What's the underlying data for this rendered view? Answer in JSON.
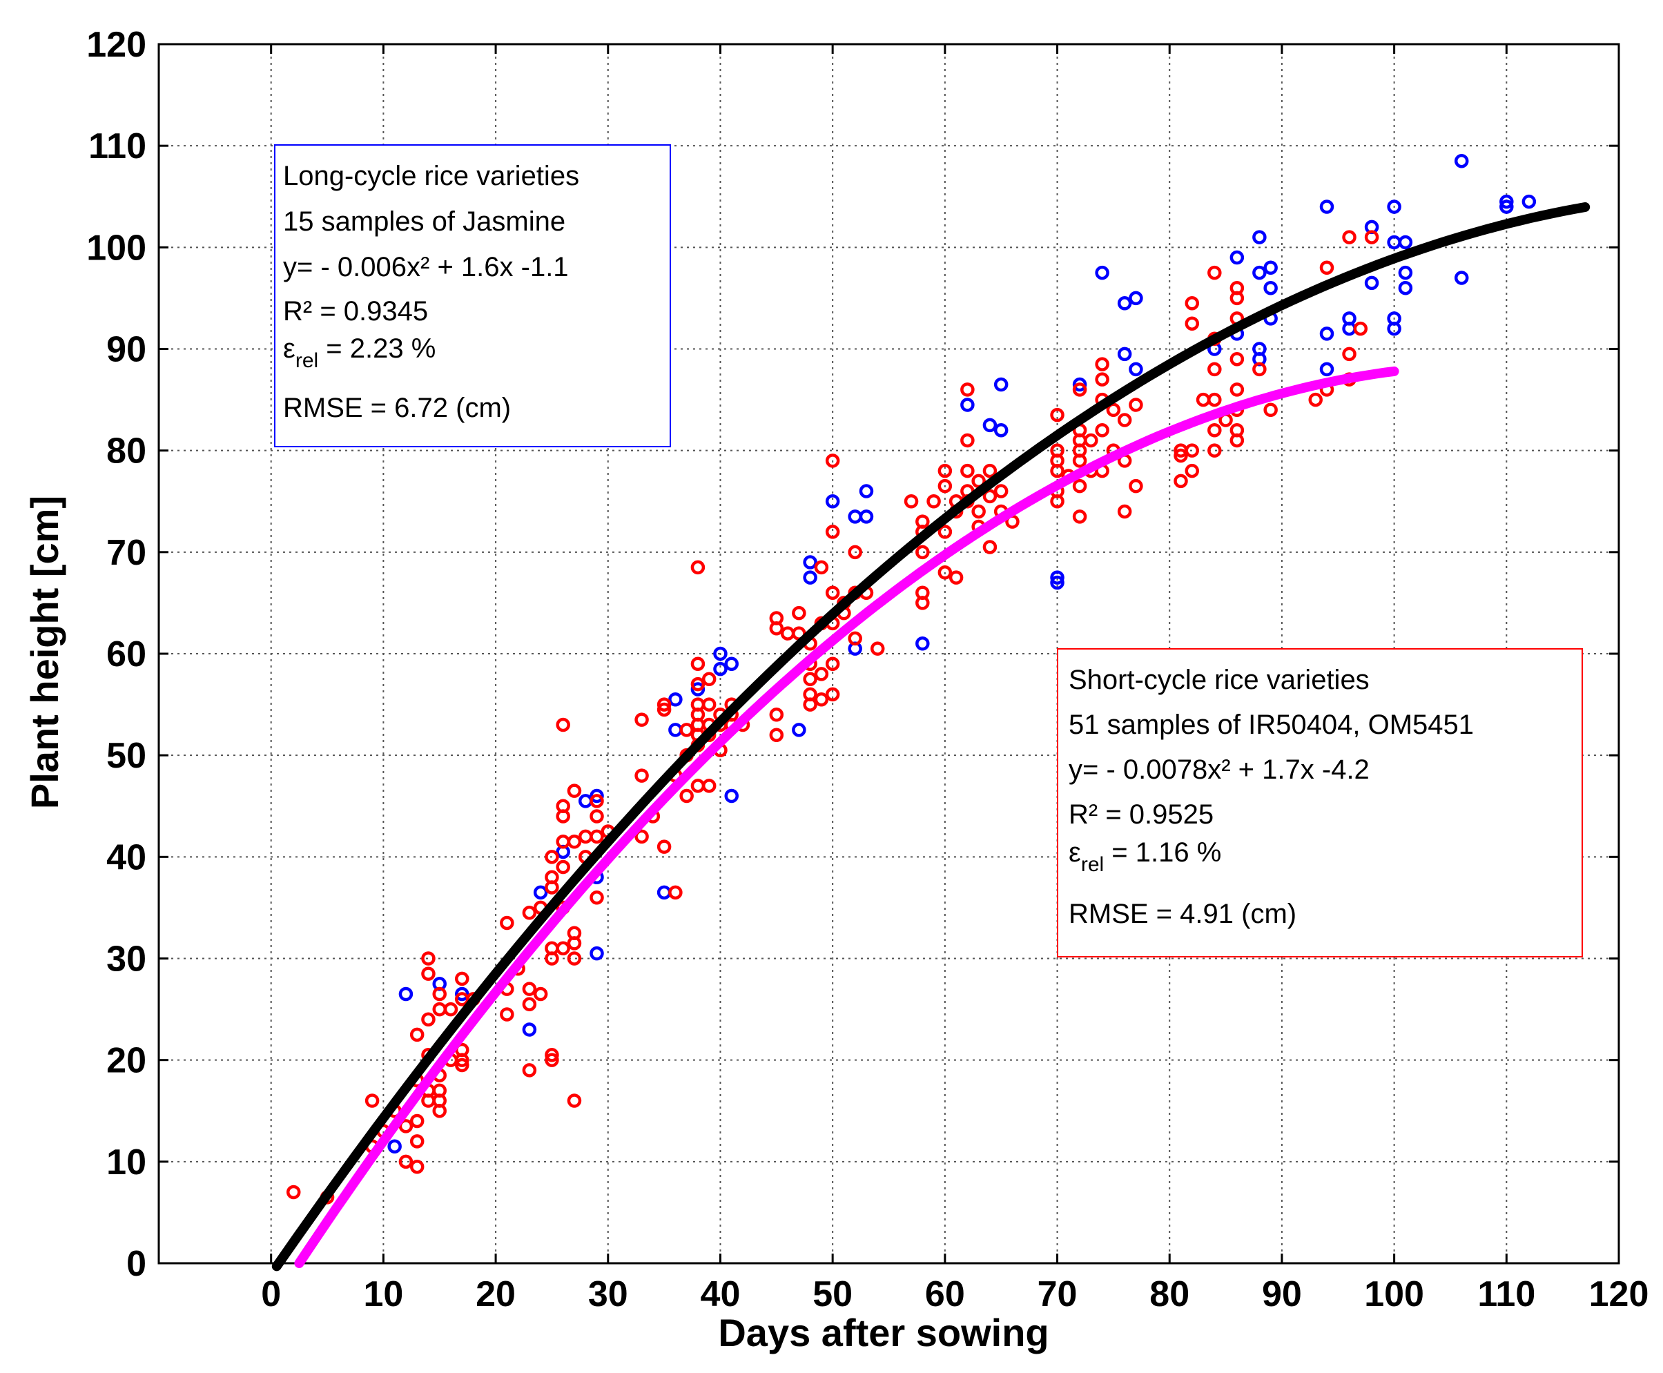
{
  "chart_data": {
    "type": "scatter",
    "xlabel": "Days after sowing",
    "ylabel": "Plant height [cm]",
    "xlim": [
      -10,
      120
    ],
    "ylim": [
      0,
      120
    ],
    "x_ticks": [
      0,
      10,
      20,
      30,
      40,
      50,
      60,
      70,
      80,
      90,
      100,
      110,
      120
    ],
    "y_ticks": [
      0,
      10,
      20,
      30,
      40,
      50,
      60,
      70,
      80,
      90,
      100,
      110,
      120
    ],
    "grid": true,
    "colors": {
      "long_cycle": "#0000ff",
      "short_cycle": "#ff0000",
      "long_fit": "#000000",
      "short_fit": "#ff00ff"
    },
    "series": [
      {
        "name": "Long-cycle rice varieties (Jasmine)",
        "marker": "circle-open",
        "color": "#0000ff",
        "points": [
          [
            11,
            11.5
          ],
          [
            12,
            26.5
          ],
          [
            15,
            27.5
          ],
          [
            17,
            26.5
          ],
          [
            23,
            23
          ],
          [
            24,
            36.5
          ],
          [
            26,
            40.5
          ],
          [
            28,
            45.5
          ],
          [
            29,
            46
          ],
          [
            29,
            30.5
          ],
          [
            29,
            38
          ],
          [
            35,
            36.5
          ],
          [
            36,
            55.5
          ],
          [
            36,
            52.5
          ],
          [
            38,
            56.5
          ],
          [
            40,
            60
          ],
          [
            40,
            58.5
          ],
          [
            41,
            59
          ],
          [
            41,
            46
          ],
          [
            47,
            52.5
          ],
          [
            48,
            69
          ],
          [
            48,
            67.5
          ],
          [
            50,
            75
          ],
          [
            52,
            73.5
          ],
          [
            52,
            60.5
          ],
          [
            53,
            76
          ],
          [
            53,
            73.5
          ],
          [
            58,
            61
          ],
          [
            62,
            84.5
          ],
          [
            64,
            82.5
          ],
          [
            65,
            86.5
          ],
          [
            65,
            82
          ],
          [
            70,
            67.5
          ],
          [
            70,
            67
          ],
          [
            72,
            86.5
          ],
          [
            74,
            97.5
          ],
          [
            76,
            94.5
          ],
          [
            77,
            95
          ],
          [
            76,
            89.5
          ],
          [
            77,
            88
          ],
          [
            84,
            90
          ],
          [
            86,
            99
          ],
          [
            86,
            91.5
          ],
          [
            88,
            101
          ],
          [
            88,
            97.5
          ],
          [
            88,
            90
          ],
          [
            88,
            89
          ],
          [
            89,
            98
          ],
          [
            89,
            96
          ],
          [
            89,
            93
          ],
          [
            94,
            104
          ],
          [
            94,
            91.5
          ],
          [
            94,
            88
          ],
          [
            96,
            93
          ],
          [
            96,
            92
          ],
          [
            98,
            102
          ],
          [
            98,
            96.5
          ],
          [
            100,
            104
          ],
          [
            100,
            100.5
          ],
          [
            100,
            93
          ],
          [
            100,
            92
          ],
          [
            101,
            100.5
          ],
          [
            101,
            97.5
          ],
          [
            101,
            96
          ],
          [
            106,
            108.5
          ],
          [
            106,
            97
          ],
          [
            110,
            104.5
          ],
          [
            110,
            104
          ],
          [
            112,
            104.5
          ]
        ]
      },
      {
        "name": "Short-cycle rice varieties (IR50404, OM5451)",
        "marker": "circle-open",
        "color": "#ff0000",
        "points": [
          [
            2,
            7
          ],
          [
            5,
            6.5
          ],
          [
            9,
            16
          ],
          [
            9,
            11.5
          ],
          [
            10,
            13
          ],
          [
            11,
            15
          ],
          [
            12,
            10
          ],
          [
            12,
            13.5
          ],
          [
            13,
            9.5
          ],
          [
            13,
            12
          ],
          [
            13,
            14
          ],
          [
            13,
            18
          ],
          [
            13,
            22.5
          ],
          [
            14,
            16
          ],
          [
            14,
            17
          ],
          [
            14,
            20.5
          ],
          [
            14,
            24
          ],
          [
            14,
            28.5
          ],
          [
            14,
            30
          ],
          [
            15,
            15
          ],
          [
            15,
            16
          ],
          [
            15,
            17
          ],
          [
            15,
            18.5
          ],
          [
            15,
            25
          ],
          [
            15,
            26.5
          ],
          [
            16,
            20
          ],
          [
            16,
            25
          ],
          [
            17,
            19.5
          ],
          [
            17,
            20
          ],
          [
            17,
            21
          ],
          [
            17,
            26
          ],
          [
            17,
            28
          ],
          [
            18,
            26
          ],
          [
            21,
            33.5
          ],
          [
            21,
            27
          ],
          [
            21,
            24.5
          ],
          [
            22,
            29
          ],
          [
            23,
            34.5
          ],
          [
            23,
            27
          ],
          [
            23,
            25.5
          ],
          [
            23,
            19
          ],
          [
            24,
            26.5
          ],
          [
            24,
            35
          ],
          [
            25,
            20
          ],
          [
            25,
            20.5
          ],
          [
            25,
            30
          ],
          [
            25,
            31
          ],
          [
            25,
            37
          ],
          [
            25,
            40
          ],
          [
            25,
            38
          ],
          [
            26,
            53
          ],
          [
            26,
            45
          ],
          [
            26,
            44
          ],
          [
            26,
            41.5
          ],
          [
            26,
            39
          ],
          [
            26,
            35
          ],
          [
            26,
            31
          ],
          [
            27,
            46.5
          ],
          [
            27,
            41.5
          ],
          [
            27,
            32.5
          ],
          [
            27,
            31.5
          ],
          [
            27,
            30
          ],
          [
            27,
            16
          ],
          [
            28,
            42
          ],
          [
            28,
            40
          ],
          [
            29,
            45.5
          ],
          [
            29,
            44
          ],
          [
            29,
            42
          ],
          [
            29,
            36
          ],
          [
            30,
            42.5
          ],
          [
            33,
            53.5
          ],
          [
            33,
            48
          ],
          [
            33,
            42
          ],
          [
            34,
            44
          ],
          [
            35,
            55
          ],
          [
            35,
            54.5
          ],
          [
            35,
            41
          ],
          [
            36,
            36.5
          ],
          [
            36,
            48
          ],
          [
            37,
            46
          ],
          [
            37,
            50
          ],
          [
            37,
            52.5
          ],
          [
            38,
            68.5
          ],
          [
            38,
            59
          ],
          [
            38,
            57
          ],
          [
            38,
            55
          ],
          [
            38,
            54
          ],
          [
            38,
            53
          ],
          [
            38,
            52
          ],
          [
            38,
            51
          ],
          [
            38,
            47
          ],
          [
            39,
            57.5
          ],
          [
            39,
            55
          ],
          [
            39,
            53
          ],
          [
            39,
            52
          ],
          [
            39,
            47
          ],
          [
            40,
            54
          ],
          [
            40,
            53
          ],
          [
            40,
            50.5
          ],
          [
            41,
            54
          ],
          [
            41,
            53
          ],
          [
            41,
            55
          ],
          [
            42,
            53
          ],
          [
            45,
            63.5
          ],
          [
            45,
            62.5
          ],
          [
            45,
            52
          ],
          [
            45,
            54
          ],
          [
            46,
            62
          ],
          [
            47,
            64
          ],
          [
            47,
            62
          ],
          [
            48,
            61
          ],
          [
            48,
            59
          ],
          [
            48,
            57.5
          ],
          [
            48,
            56
          ],
          [
            48,
            55
          ],
          [
            49,
            68.5
          ],
          [
            49,
            63
          ],
          [
            49,
            58
          ],
          [
            49,
            55.5
          ],
          [
            50,
            79
          ],
          [
            50,
            72
          ],
          [
            50,
            66
          ],
          [
            50,
            63
          ],
          [
            50,
            59
          ],
          [
            50,
            56
          ],
          [
            51,
            65
          ],
          [
            51,
            64
          ],
          [
            52,
            66
          ],
          [
            52,
            70
          ],
          [
            52,
            61.5
          ],
          [
            53,
            66
          ],
          [
            54,
            60.5
          ],
          [
            57,
            75
          ],
          [
            58,
            73
          ],
          [
            58,
            72
          ],
          [
            58,
            70
          ],
          [
            58,
            66
          ],
          [
            58,
            65
          ],
          [
            59,
            75
          ],
          [
            60,
            78
          ],
          [
            60,
            76.5
          ],
          [
            60,
            72
          ],
          [
            60,
            68
          ],
          [
            61,
            75
          ],
          [
            61,
            74
          ],
          [
            61,
            67.5
          ],
          [
            62,
            86
          ],
          [
            62,
            81
          ],
          [
            62,
            78
          ],
          [
            62,
            76
          ],
          [
            62,
            75
          ],
          [
            63,
            77
          ],
          [
            63,
            74
          ],
          [
            63,
            72.5
          ],
          [
            64,
            78
          ],
          [
            64,
            75.5
          ],
          [
            64,
            70.5
          ],
          [
            65,
            76
          ],
          [
            65,
            74
          ],
          [
            66,
            73
          ],
          [
            70,
            83.5
          ],
          [
            70,
            80
          ],
          [
            70,
            79
          ],
          [
            70,
            78
          ],
          [
            70,
            76
          ],
          [
            70,
            75
          ],
          [
            71,
            77.5
          ],
          [
            72,
            86
          ],
          [
            72,
            82
          ],
          [
            72,
            81
          ],
          [
            72,
            80
          ],
          [
            72,
            79
          ],
          [
            72,
            76.5
          ],
          [
            72,
            73.5
          ],
          [
            73,
            81
          ],
          [
            73,
            78
          ],
          [
            74,
            88.5
          ],
          [
            74,
            87
          ],
          [
            74,
            85
          ],
          [
            74,
            82
          ],
          [
            74,
            78
          ],
          [
            75,
            84
          ],
          [
            75,
            80
          ],
          [
            76,
            83
          ],
          [
            76,
            79
          ],
          [
            76,
            74
          ],
          [
            77,
            84.5
          ],
          [
            77,
            76.5
          ],
          [
            81,
            80
          ],
          [
            81,
            79.5
          ],
          [
            81,
            77
          ],
          [
            82,
            94.5
          ],
          [
            82,
            92.5
          ],
          [
            82,
            80
          ],
          [
            82,
            78
          ],
          [
            83,
            85
          ],
          [
            84,
            97.5
          ],
          [
            84,
            91
          ],
          [
            84,
            88
          ],
          [
            84,
            85
          ],
          [
            84,
            82
          ],
          [
            84,
            80
          ],
          [
            85,
            83
          ],
          [
            86,
            96
          ],
          [
            86,
            95
          ],
          [
            86,
            93
          ],
          [
            86,
            89
          ],
          [
            86,
            86
          ],
          [
            86,
            84
          ],
          [
            86,
            82
          ],
          [
            86,
            81
          ],
          [
            88,
            88
          ],
          [
            89,
            84
          ],
          [
            93,
            85
          ],
          [
            94,
            98
          ],
          [
            94,
            86
          ],
          [
            96,
            101
          ],
          [
            96,
            89.5
          ],
          [
            96,
            87
          ],
          [
            97,
            92
          ],
          [
            98,
            101
          ]
        ]
      },
      {
        "name": "Long-cycle fit",
        "type": "line",
        "color": "#000000",
        "equation": "y = -0.006x^2 + 1.6x - 1.1",
        "x_range": [
          0.5,
          117
        ],
        "coefficients": [
          -0.006,
          1.6,
          -1.1
        ]
      },
      {
        "name": "Short-cycle fit",
        "type": "line",
        "color": "#ff00ff",
        "equation": "y = -0.0078x^2 + 1.7x - 4.2",
        "x_range": [
          2.5,
          100
        ],
        "coefficients": [
          -0.0078,
          1.7,
          -4.2
        ]
      }
    ],
    "annotations": {
      "long": {
        "lines": [
          "Long-cycle rice varieties",
          "15 samples of Jasmine",
          "y= - 0.006x² + 1.6x -1.1",
          "R² = 0.9345"
        ],
        "eps_symbol": "ε",
        "eps_sub": "rel",
        "eps_value": " = 2.23 %",
        "rmse": "RMSE = 6.72 (cm)",
        "border_color": "#0000ff"
      },
      "short": {
        "lines": [
          "Short-cycle rice varieties",
          "51 samples of IR50404, OM5451",
          "y= - 0.0078x² + 1.7x -4.2",
          "R² = 0.9525"
        ],
        "eps_symbol": "ε",
        "eps_sub": "rel",
        "eps_value": " = 1.16 %",
        "rmse": "RMSE = 4.91 (cm)",
        "border_color": "#ff0000"
      }
    }
  }
}
